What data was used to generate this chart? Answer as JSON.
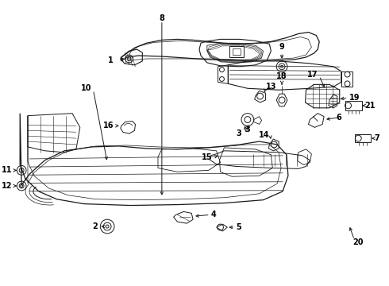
{
  "background_color": "#ffffff",
  "line_color": "#1a1a1a",
  "text_color": "#000000",
  "label_fontsize": 7.0,
  "fig_width": 4.9,
  "fig_height": 3.6,
  "dpi": 100
}
